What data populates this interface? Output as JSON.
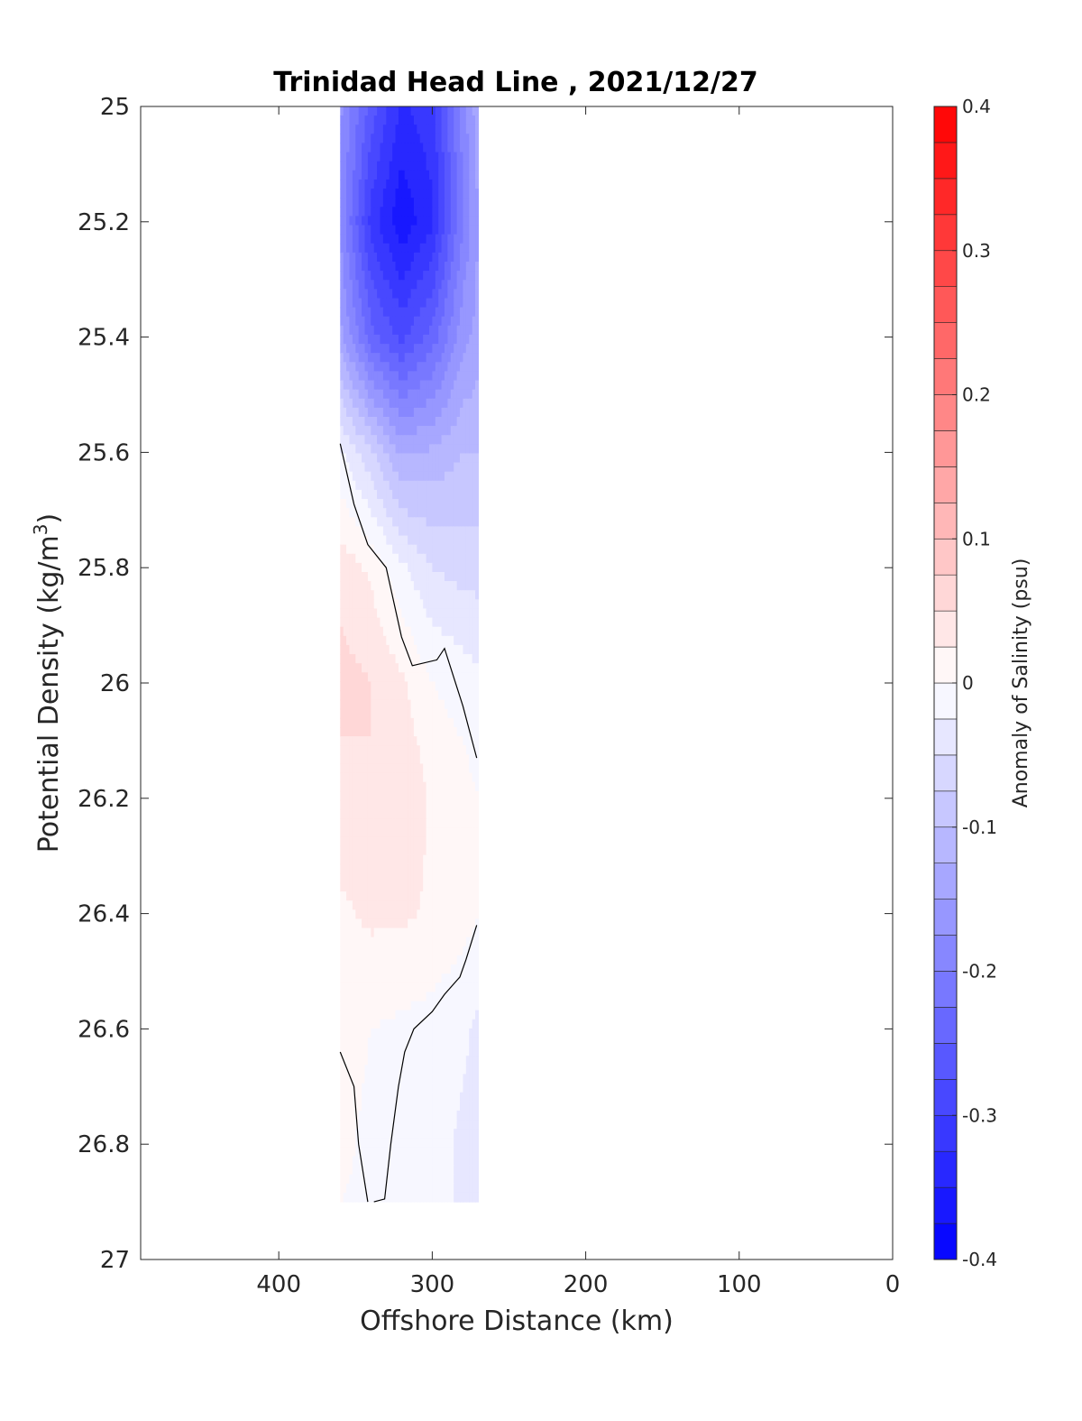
{
  "chart_data": {
    "type": "heatmap",
    "subtype": "filled-contour",
    "title": "Trinidad Head Line , 2021/12/27",
    "xlabel": "Offshore Distance (km)",
    "ylabel_main": "Potential Density (kg/m",
    "ylabel_sup": "3",
    "ylabel_close": ")",
    "colorbar_label": "Anomaly of Salinity (psu)",
    "xlim": [
      490,
      0
    ],
    "x_reversed": true,
    "ylim": [
      25,
      27
    ],
    "y_reversed": true,
    "x_ticks": [
      400,
      300,
      200,
      100,
      0
    ],
    "x_tick_labels": [
      "400",
      "300",
      "200",
      "100",
      "0"
    ],
    "y_ticks": [
      25,
      25.2,
      25.4,
      25.6,
      25.8,
      26,
      26.2,
      26.4,
      26.6,
      26.8,
      27
    ],
    "y_tick_labels": [
      "25",
      "25.2",
      "25.4",
      "25.6",
      "25.8",
      "26",
      "26.2",
      "26.4",
      "26.6",
      "26.8",
      "27"
    ],
    "colorbar": {
      "range": [
        -0.4,
        0.4
      ],
      "step": 0.025,
      "min_color": "#0000ff",
      "mid_color": "#ffffff",
      "max_color": "#ff0000",
      "ticks": [
        0.4,
        0.3,
        0.2,
        0.1,
        0,
        -0.1,
        -0.2,
        -0.3,
        -0.4
      ],
      "tick_labels": [
        "0.4",
        "0.3",
        "0.2",
        "0.1",
        "0",
        "-0.1",
        "-0.2",
        "-0.3",
        "-0.4"
      ]
    },
    "data_extent": {
      "x": [
        270,
        360
      ],
      "y": [
        25,
        26.9
      ]
    },
    "grid": false,
    "anomaly_grid": {
      "x": [
        360,
        340,
        320,
        300,
        280,
        270
      ],
      "y": [
        25,
        25.2,
        25.4,
        25.6,
        25.8,
        26,
        26.2,
        26.4,
        26.6,
        26.8,
        26.9
      ],
      "values": [
        [
          -0.17,
          -0.26,
          -0.33,
          -0.31,
          -0.19,
          -0.13
        ],
        [
          -0.18,
          -0.31,
          -0.37,
          -0.33,
          -0.2,
          -0.15
        ],
        [
          -0.14,
          -0.24,
          -0.28,
          -0.24,
          -0.16,
          -0.14
        ],
        [
          -0.02,
          -0.07,
          -0.13,
          -0.12,
          -0.1,
          -0.1
        ],
        [
          0.04,
          0.02,
          -0.02,
          -0.05,
          -0.06,
          -0.06
        ],
        [
          0.06,
          0.05,
          0.03,
          0.0,
          -0.01,
          -0.02
        ],
        [
          0.04,
          0.05,
          0.05,
          0.02,
          0.01,
          0.0
        ],
        [
          0.02,
          0.03,
          0.03,
          0.02,
          0.01,
          0.0
        ],
        [
          0.01,
          0.0,
          -0.005,
          -0.01,
          -0.02,
          -0.03
        ],
        [
          0.005,
          -0.005,
          -0.01,
          -0.015,
          -0.03,
          -0.04
        ],
        [
          0.0,
          -0.005,
          -0.01,
          -0.015,
          -0.03,
          -0.04
        ]
      ]
    },
    "zero_contours": [
      {
        "points": [
          [
            360,
            25.585
          ],
          [
            351,
            25.69
          ],
          [
            342,
            25.76
          ],
          [
            330,
            25.8
          ],
          [
            320,
            25.92
          ],
          [
            313,
            25.97
          ],
          [
            297,
            25.96
          ],
          [
            292,
            25.94
          ],
          [
            280,
            26.04
          ],
          [
            271,
            26.13
          ]
        ]
      },
      {
        "points": [
          [
            271,
            26.42
          ],
          [
            278,
            26.48
          ],
          [
            282,
            26.51
          ],
          [
            292,
            26.54
          ],
          [
            300,
            26.57
          ],
          [
            312,
            26.6
          ],
          [
            318,
            26.64
          ],
          [
            322,
            26.7
          ],
          [
            327,
            26.8
          ],
          [
            331,
            26.895
          ],
          [
            338,
            26.9
          ]
        ]
      },
      {
        "points": [
          [
            360,
            26.64
          ],
          [
            351,
            26.7
          ],
          [
            348,
            26.8
          ],
          [
            342,
            26.9
          ]
        ]
      }
    ]
  }
}
